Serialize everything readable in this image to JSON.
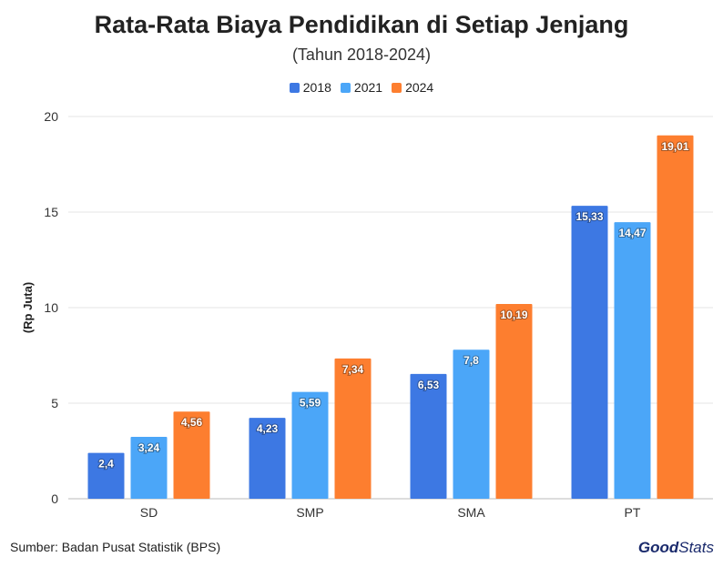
{
  "header": {
    "title": "Rata-Rata Biaya Pendidikan di Setiap Jenjang",
    "subtitle": "(Tahun 2018-2024)"
  },
  "footer": {
    "source": "Sumber: Badan Pusat Statistik (BPS)",
    "logo_part1": "Good",
    "logo_part2": "Stats"
  },
  "colors": {
    "s2018": "#3d78e3",
    "s2021": "#4ba6f8",
    "s2024": "#fd7e2f"
  },
  "chart_data": {
    "type": "bar",
    "title": "Rata-Rata Biaya Pendidikan di Setiap Jenjang",
    "subtitle": "(Tahun 2018-2024)",
    "xlabel": "",
    "ylabel": "(Rp Juta)",
    "ylim": [
      0,
      20
    ],
    "yticks": [
      "0",
      "5",
      "10",
      "15",
      "20"
    ],
    "grid": true,
    "legend_position": "top-center",
    "categories": [
      "SD",
      "SMP",
      "SMA",
      "PT"
    ],
    "series": [
      {
        "name": "2018",
        "values": [
          2.4,
          4.23,
          6.53,
          15.33
        ],
        "labels": [
          "2,4",
          "4,23",
          "6,53",
          "15,33"
        ]
      },
      {
        "name": "2021",
        "values": [
          3.24,
          5.59,
          7.8,
          14.47
        ],
        "labels": [
          "3,24",
          "5,59",
          "7,8",
          "14,47"
        ]
      },
      {
        "name": "2024",
        "values": [
          4.56,
          7.34,
          10.19,
          19.01
        ],
        "labels": [
          "4,56",
          "7,34",
          "10,19",
          "19,01"
        ]
      }
    ]
  }
}
